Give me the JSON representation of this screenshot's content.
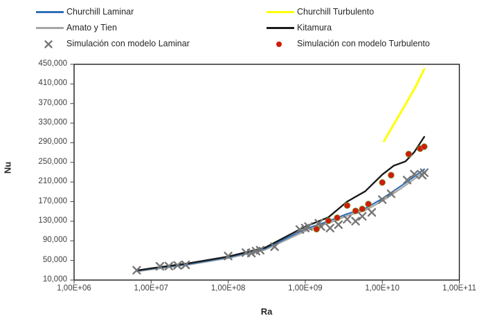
{
  "chart_data": {
    "type": "line",
    "title": "",
    "xlabel": "Ra",
    "ylabel": "Nu",
    "x_scale": "log",
    "grid": false,
    "legend_position": "top",
    "x_domain": [
      1000000,
      100000000000
    ],
    "y_domain": [
      10000,
      450000
    ],
    "x_tick_values": [
      1000000,
      10000000,
      100000000,
      1000000000,
      10000000000,
      100000000000
    ],
    "x_tick_labels": [
      "1,00E+06",
      "1,00E+07",
      "1,00E+08",
      "1,00E+09",
      "1,00E+10",
      "1,00E+11"
    ],
    "y_tick_values": [
      10000,
      50000,
      90000,
      130000,
      170000,
      210000,
      250000,
      290000,
      330000,
      370000,
      410000,
      450000
    ],
    "y_tick_labels": [
      "10,000",
      "50,000",
      "90,000",
      "130,000",
      "170,000",
      "210,000",
      "250,000",
      "290,000",
      "330,000",
      "370,000",
      "410,000",
      "450,000"
    ],
    "series": [
      {
        "id": "churchill-laminar",
        "name": "Churchill Laminar",
        "marker": "none",
        "color": "#2E6FB7",
        "points": [
          [
            6500000,
            29000
          ],
          [
            10000000,
            33000
          ],
          [
            30000000,
            42500
          ],
          [
            100000000,
            56500
          ],
          [
            300000000,
            74000
          ],
          [
            1000000000,
            114000
          ],
          [
            2000000000,
            130000
          ],
          [
            3500000000,
            145000
          ],
          [
            6000000000,
            156000
          ],
          [
            10000000000,
            176000
          ],
          [
            20000000000,
            208000
          ],
          [
            35000000000,
            236000
          ]
        ]
      },
      {
        "id": "churchill-turbulento",
        "name": "Churchill Turbulento",
        "marker": "none",
        "color": "#FFFF00",
        "points": [
          [
            10500000000,
            293000
          ],
          [
            14000000000,
            327000
          ],
          [
            20000000000,
            368000
          ],
          [
            27000000000,
            404000
          ],
          [
            35000000000,
            440000
          ]
        ]
      },
      {
        "id": "amato-y-tien",
        "name": "Amato y Tien",
        "marker": "none",
        "color": "#A6A6A6",
        "points": [
          [
            6500000,
            27500
          ],
          [
            10000000,
            31500
          ],
          [
            30000000,
            41000
          ],
          [
            100000000,
            54500
          ],
          [
            300000000,
            71500
          ],
          [
            1000000000,
            110000
          ],
          [
            2000000000,
            126000
          ],
          [
            3500000000,
            141000
          ],
          [
            6000000000,
            152000
          ],
          [
            10000000000,
            171000
          ],
          [
            20000000000,
            203000
          ],
          [
            35000000000,
            231000
          ]
        ]
      },
      {
        "id": "kitamura",
        "name": "Kitamura",
        "marker": "none",
        "color": "#1A1A1A",
        "points": [
          [
            6500000,
            29500
          ],
          [
            10000000,
            34000
          ],
          [
            30000000,
            44000
          ],
          [
            100000000,
            58000
          ],
          [
            300000000,
            76000
          ],
          [
            1000000000,
            119000
          ],
          [
            2000000000,
            138000
          ],
          [
            3500000000,
            170000
          ],
          [
            6000000000,
            191000
          ],
          [
            10000000000,
            225000
          ],
          [
            14000000000,
            243000
          ],
          [
            20000000000,
            252000
          ],
          [
            26000000000,
            271000
          ],
          [
            35000000000,
            302000
          ]
        ]
      },
      {
        "id": "sim-laminar",
        "name": "Simulación con modelo Laminar",
        "marker": "x",
        "color": "#767676",
        "points": [
          [
            6500000,
            30000
          ],
          [
            13000000,
            38000
          ],
          [
            17000000,
            38500
          ],
          [
            22000000,
            40000
          ],
          [
            28000000,
            41000
          ],
          [
            100000000,
            59000
          ],
          [
            170000000,
            66000
          ],
          [
            200000000,
            65000
          ],
          [
            230000000,
            69000
          ],
          [
            260000000,
            71000
          ],
          [
            400000000,
            78000
          ],
          [
            850000000,
            113000
          ],
          [
            1000000000,
            116000
          ],
          [
            1100000000,
            119000
          ],
          [
            1500000000,
            126000
          ],
          [
            1600000000,
            119000
          ],
          [
            2100000000,
            116000
          ],
          [
            2700000000,
            123000
          ],
          [
            3500000000,
            134000
          ],
          [
            4500000000,
            130000
          ],
          [
            5500000000,
            140000
          ],
          [
            7300000000,
            148000
          ],
          [
            10000000000,
            174000
          ],
          [
            13000000000,
            186000
          ],
          [
            21000000000,
            214000
          ],
          [
            26000000000,
            226000
          ],
          [
            33000000000,
            224000
          ],
          [
            35000000000,
            229000
          ]
        ]
      },
      {
        "id": "sim-turbulento",
        "name": "Simulación con modelo Turbulento",
        "marker": "dot",
        "color": "#CE1D0C",
        "points": [
          [
            1400000000,
            114000
          ],
          [
            2000000000,
            131000
          ],
          [
            2600000000,
            137000
          ],
          [
            3500000000,
            162000
          ],
          [
            4500000000,
            151000
          ],
          [
            5500000000,
            155000
          ],
          [
            6600000000,
            165000
          ],
          [
            10000000000,
            209000
          ],
          [
            13000000000,
            224000
          ],
          [
            22000000000,
            267000
          ],
          [
            31000000000,
            278000
          ],
          [
            35000000000,
            282000
          ]
        ]
      }
    ]
  }
}
